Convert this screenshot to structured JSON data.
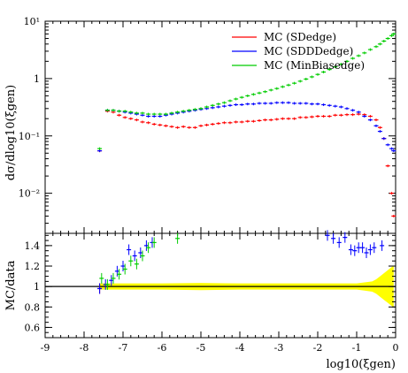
{
  "chart_data": [
    {
      "type": "scatter",
      "panel": "main",
      "ylabel": "dσ/dlog10(ξgen)",
      "yscale": "log",
      "xlim": [
        -9,
        0
      ],
      "ylim": [
        0.002,
        10
      ],
      "y_ticks": [
        {
          "value": 0.01,
          "label": "10⁻²"
        },
        {
          "value": 0.1,
          "label": "10⁻¹"
        },
        {
          "value": 1,
          "label": "1"
        },
        {
          "value": 10,
          "label": "10¹"
        }
      ],
      "legend": {
        "placement": "top-right"
      },
      "series": [
        {
          "name": "MC (SDedge)",
          "color": "#ff0000",
          "x": [
            -7.6,
            -7.4,
            -7.25,
            -7.1,
            -6.95,
            -6.8,
            -6.65,
            -6.5,
            -6.35,
            -6.2,
            -6.05,
            -5.9,
            -5.75,
            -5.6,
            -5.45,
            -5.3,
            -5.15,
            -5.0,
            -4.85,
            -4.7,
            -4.55,
            -4.4,
            -4.25,
            -4.1,
            -3.95,
            -3.8,
            -3.65,
            -3.5,
            -3.35,
            -3.2,
            -3.05,
            -2.9,
            -2.75,
            -2.6,
            -2.45,
            -2.3,
            -2.15,
            -2.0,
            -1.85,
            -1.7,
            -1.55,
            -1.4,
            -1.25,
            -1.1,
            -0.95,
            -0.8,
            -0.65,
            -0.5,
            -0.4,
            -0.3,
            -0.2,
            -0.1,
            -0.05
          ],
          "y": [
            0.055,
            0.27,
            0.26,
            0.23,
            0.21,
            0.2,
            0.19,
            0.175,
            0.17,
            0.16,
            0.155,
            0.15,
            0.145,
            0.14,
            0.145,
            0.14,
            0.14,
            0.15,
            0.155,
            0.16,
            0.165,
            0.17,
            0.17,
            0.175,
            0.175,
            0.18,
            0.18,
            0.185,
            0.19,
            0.19,
            0.195,
            0.2,
            0.2,
            0.2,
            0.21,
            0.21,
            0.215,
            0.22,
            0.22,
            0.22,
            0.23,
            0.23,
            0.235,
            0.235,
            0.24,
            0.235,
            0.22,
            0.19,
            0.14,
            0.09,
            0.03,
            0.01,
            0.004
          ]
        },
        {
          "name": "MC (SDDDedge)",
          "color": "#0000ff",
          "x": [
            -7.6,
            -7.4,
            -7.25,
            -7.1,
            -6.95,
            -6.8,
            -6.65,
            -6.5,
            -6.35,
            -6.2,
            -6.05,
            -5.9,
            -5.75,
            -5.6,
            -5.45,
            -5.3,
            -5.15,
            -5.0,
            -4.85,
            -4.7,
            -4.55,
            -4.4,
            -4.25,
            -4.1,
            -3.95,
            -3.8,
            -3.65,
            -3.5,
            -3.35,
            -3.2,
            -3.05,
            -2.9,
            -2.75,
            -2.6,
            -2.45,
            -2.3,
            -2.15,
            -2.0,
            -1.85,
            -1.7,
            -1.55,
            -1.4,
            -1.25,
            -1.1,
            -0.95,
            -0.8,
            -0.65,
            -0.5,
            -0.4,
            -0.3,
            -0.2,
            -0.1,
            -0.05
          ],
          "y": [
            0.055,
            0.28,
            0.28,
            0.27,
            0.26,
            0.25,
            0.24,
            0.23,
            0.22,
            0.22,
            0.22,
            0.23,
            0.24,
            0.25,
            0.26,
            0.27,
            0.28,
            0.29,
            0.3,
            0.31,
            0.32,
            0.33,
            0.34,
            0.35,
            0.35,
            0.36,
            0.36,
            0.37,
            0.37,
            0.37,
            0.38,
            0.38,
            0.38,
            0.37,
            0.37,
            0.37,
            0.36,
            0.36,
            0.35,
            0.34,
            0.33,
            0.32,
            0.3,
            0.28,
            0.26,
            0.22,
            0.19,
            0.15,
            0.12,
            0.09,
            0.07,
            0.06,
            0.055
          ]
        },
        {
          "name": "MC (MinBiasedge)",
          "color": "#00cc00",
          "x": [
            -7.6,
            -7.4,
            -7.25,
            -7.1,
            -6.95,
            -6.8,
            -6.65,
            -6.5,
            -6.35,
            -6.2,
            -6.05,
            -5.9,
            -5.75,
            -5.6,
            -5.45,
            -5.3,
            -5.15,
            -5.0,
            -4.85,
            -4.7,
            -4.55,
            -4.4,
            -4.25,
            -4.1,
            -3.95,
            -3.8,
            -3.65,
            -3.5,
            -3.35,
            -3.2,
            -3.05,
            -2.9,
            -2.75,
            -2.6,
            -2.45,
            -2.3,
            -2.15,
            -2.0,
            -1.85,
            -1.7,
            -1.55,
            -1.4,
            -1.25,
            -1.1,
            -0.95,
            -0.8,
            -0.65,
            -0.5,
            -0.4,
            -0.3,
            -0.2,
            -0.1,
            -0.05
          ],
          "y": [
            0.06,
            0.28,
            0.28,
            0.27,
            0.27,
            0.26,
            0.25,
            0.25,
            0.24,
            0.24,
            0.24,
            0.24,
            0.25,
            0.26,
            0.27,
            0.28,
            0.29,
            0.3,
            0.32,
            0.34,
            0.36,
            0.38,
            0.41,
            0.44,
            0.47,
            0.5,
            0.53,
            0.56,
            0.59,
            0.63,
            0.67,
            0.72,
            0.77,
            0.83,
            0.9,
            0.98,
            1.07,
            1.18,
            1.3,
            1.44,
            1.6,
            1.78,
            2.0,
            2.25,
            2.5,
            2.8,
            3.2,
            3.6,
            4.0,
            4.5,
            5.0,
            5.6,
            6.0
          ]
        }
      ]
    },
    {
      "type": "scatter",
      "panel": "ratio",
      "ylabel": "MC/data",
      "xlabel": "log10(ξgen)",
      "xlim": [
        -9,
        0
      ],
      "ylim": [
        0.5,
        1.52
      ],
      "x_ticks": [
        {
          "value": -9,
          "label": "-9"
        },
        {
          "value": -8,
          "label": "-8"
        },
        {
          "value": -7,
          "label": "-7"
        },
        {
          "value": -6,
          "label": "-6"
        },
        {
          "value": -5,
          "label": "-5"
        },
        {
          "value": -4,
          "label": "-4"
        },
        {
          "value": -3,
          "label": "-3"
        },
        {
          "value": -2,
          "label": "-2"
        },
        {
          "value": -1,
          "label": "-1"
        },
        {
          "value": 0,
          "label": "0"
        }
      ],
      "y_ticks": [
        {
          "value": 0.6,
          "label": "0.6"
        },
        {
          "value": 0.8,
          "label": "0.8"
        },
        {
          "value": 1,
          "label": "1"
        },
        {
          "value": 1.2,
          "label": "1.2"
        },
        {
          "value": 1.4,
          "label": "1.4"
        }
      ],
      "reference_line": 1.0,
      "uncertainty_band": {
        "color": "#ffff00",
        "x": [
          -7.6,
          -7.0,
          -6.0,
          -5.0,
          -4.0,
          -3.0,
          -2.0,
          -1.0,
          -0.8,
          -0.6,
          -0.5,
          -0.4,
          -0.3,
          -0.2,
          -0.1,
          -0.05
        ],
        "half_width": [
          0.03,
          0.03,
          0.03,
          0.035,
          0.03,
          0.03,
          0.03,
          0.03,
          0.04,
          0.05,
          0.07,
          0.1,
          0.13,
          0.16,
          0.19,
          0.2
        ]
      },
      "series": [
        {
          "name": "MC (SDedge)",
          "color": "#ff0000",
          "x": [
            -7.6
          ],
          "y": [
            0.98
          ]
        },
        {
          "name": "MC (SDDDedge)",
          "color": "#0000ff",
          "x": [
            -7.6,
            -7.45,
            -7.3,
            -7.15,
            -7.0,
            -6.85,
            -6.7,
            -6.55,
            -6.4,
            -6.25,
            -1.75,
            -1.6,
            -1.45,
            -1.3,
            -1.15,
            -1.05,
            -0.95,
            -0.85,
            -0.75,
            -0.65,
            -0.55,
            -0.35
          ],
          "y": [
            0.98,
            1.02,
            1.06,
            1.15,
            1.2,
            1.36,
            1.3,
            1.33,
            1.4,
            1.43,
            1.5,
            1.47,
            1.43,
            1.48,
            1.36,
            1.35,
            1.38,
            1.38,
            1.33,
            1.36,
            1.38,
            1.4
          ]
        },
        {
          "name": "MC (MinBiasedge)",
          "color": "#00cc00",
          "x": [
            -7.55,
            -7.4,
            -7.25,
            -7.1,
            -6.95,
            -6.8,
            -6.65,
            -6.5,
            -6.35,
            -6.2,
            -5.6
          ],
          "y": [
            1.08,
            1.02,
            1.08,
            1.12,
            1.17,
            1.25,
            1.22,
            1.3,
            1.38,
            1.43,
            1.47
          ]
        }
      ]
    }
  ]
}
